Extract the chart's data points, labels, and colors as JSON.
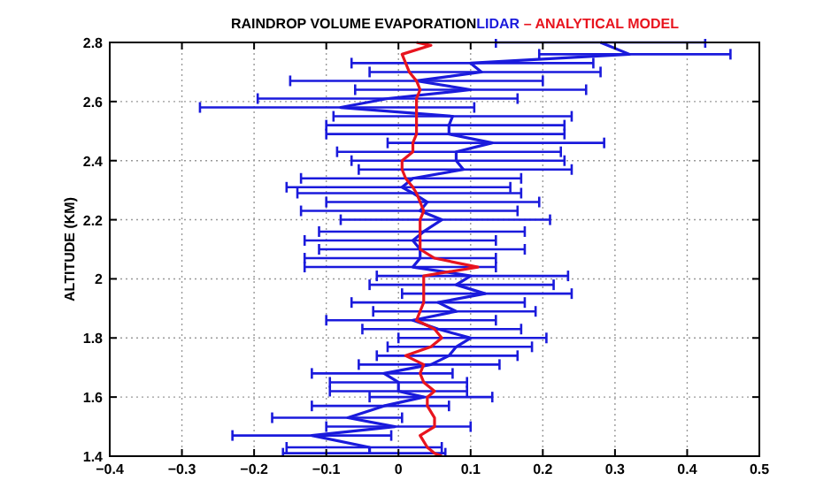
{
  "chart_data": {
    "type": "line",
    "orientation": "horizontal",
    "title": "RAINDROP VOLUME EVAPORATION",
    "ylabel": "ALTITUDE (KM)",
    "legend": "top",
    "grid": true,
    "line_style": "solid",
    "marker": "none",
    "xlim": [
      -0.4,
      0.5
    ],
    "xticks": [
      -0.4,
      -0.3,
      -0.2,
      -0.1,
      0,
      0.1,
      0.2,
      0.3,
      0.4,
      0.5
    ],
    "ylim": [
      1.4,
      2.8
    ],
    "yticks": [
      1.4,
      1.6,
      1.8,
      2,
      2.2,
      2.4,
      2.6,
      2.8
    ],
    "series": [
      {
        "name": "LIDAR",
        "color": "#1a1adc",
        "x": [
          1.41,
          1.43,
          1.47,
          1.5,
          1.53,
          1.57,
          1.6,
          1.62,
          1.65,
          1.68,
          1.71,
          1.74,
          1.77,
          1.8,
          1.83,
          1.86,
          1.89,
          1.92,
          1.95,
          1.98,
          2.01,
          2.04,
          2.07,
          2.1,
          2.13,
          2.16,
          2.2,
          2.23,
          2.26,
          2.29,
          2.31,
          2.34,
          2.37,
          2.4,
          2.43,
          2.46,
          2.49,
          2.52,
          2.55,
          2.58,
          2.61,
          2.64,
          2.67,
          2.7,
          2.73,
          2.76,
          2.8
        ],
        "values": [
          -0.04,
          -0.04,
          -0.12,
          -0.005,
          -0.07,
          -0.02,
          0.035,
          0,
          0,
          -0.02,
          0.045,
          0.07,
          0.08,
          0.1,
          0.055,
          0.02,
          0.08,
          0.055,
          0.12,
          0.08,
          0.1,
          0.02,
          0.03,
          0.03,
          0.02,
          0.035,
          0.06,
          0.03,
          0.04,
          0.02,
          0.005,
          0.02,
          0.09,
          0.08,
          0.08,
          0.13,
          0.07,
          0.07,
          0.075,
          -0.08,
          -0.015,
          0.1,
          0.025,
          0.115,
          0.1,
          0.32,
          0.28
        ],
        "errors": [
          [
            -0.16,
            0.065
          ],
          [
            -0.155,
            0.06
          ],
          [
            -0.23,
            -0.01
          ],
          [
            -0.1,
            0.1
          ],
          [
            -0.175,
            0.005
          ],
          [
            -0.12,
            0.07
          ],
          [
            -0.04,
            0.13
          ],
          [
            -0.095,
            0.095
          ],
          [
            -0.095,
            0.095
          ],
          [
            -0.12,
            0.075
          ],
          [
            -0.055,
            0.14
          ],
          [
            -0.03,
            0.165
          ],
          [
            -0.015,
            0.185
          ],
          [
            0,
            0.205
          ],
          [
            -0.05,
            0.17
          ],
          [
            -0.1,
            0.135
          ],
          [
            -0.035,
            0.19
          ],
          [
            -0.065,
            0.175
          ],
          [
            0.005,
            0.24
          ],
          [
            -0.04,
            0.215
          ],
          [
            -0.03,
            0.235
          ],
          [
            -0.13,
            0.135
          ],
          [
            -0.13,
            0.135
          ],
          [
            -0.11,
            0.175
          ],
          [
            -0.13,
            0.135
          ],
          [
            -0.11,
            0.175
          ],
          [
            -0.08,
            0.21
          ],
          [
            -0.135,
            0.165
          ],
          [
            -0.1,
            0.195
          ],
          [
            -0.14,
            0.17
          ],
          [
            -0.155,
            0.155
          ],
          [
            -0.135,
            0.17
          ],
          [
            -0.055,
            0.24
          ],
          [
            -0.065,
            0.23
          ],
          [
            -0.085,
            0.225
          ],
          [
            -0.015,
            0.285
          ],
          [
            -0.1,
            0.23
          ],
          [
            -0.1,
            0.23
          ],
          [
            -0.09,
            0.24
          ],
          [
            -0.275,
            0.105
          ],
          [
            -0.195,
            0.165
          ],
          [
            -0.06,
            0.26
          ],
          [
            -0.15,
            0.2
          ],
          [
            -0.04,
            0.28
          ],
          [
            -0.065,
            0.27
          ],
          [
            0.195,
            0.46
          ],
          [
            0.135,
            0.425
          ]
        ]
      },
      {
        "name": "– ANALYTICAL MODEL",
        "color": "#e8141e",
        "x": [
          1.4,
          1.41,
          1.43,
          1.47,
          1.5,
          1.53,
          1.57,
          1.6,
          1.62,
          1.65,
          1.68,
          1.71,
          1.74,
          1.77,
          1.8,
          1.83,
          1.86,
          1.89,
          1.92,
          1.95,
          1.98,
          2.01,
          2.04,
          2.07,
          2.1,
          2.13,
          2.16,
          2.2,
          2.23,
          2.26,
          2.29,
          2.31,
          2.34,
          2.37,
          2.4,
          2.43,
          2.46,
          2.49,
          2.52,
          2.55,
          2.58,
          2.61,
          2.64,
          2.67,
          2.7,
          2.73,
          2.76,
          2.79,
          2.8
        ],
        "values": [
          0.06,
          0.05,
          0.04,
          0.03,
          0.05,
          0.05,
          0.04,
          0.04,
          0.05,
          0.035,
          0.03,
          0.035,
          0.01,
          0.045,
          0.06,
          0.05,
          0.025,
          0.03,
          0.035,
          0.035,
          0.035,
          0.035,
          0.11,
          0.05,
          0.03,
          0.03,
          0.03,
          0.03,
          0.035,
          0.03,
          0.025,
          0.02,
          0.01,
          0.005,
          0.005,
          0.02,
          0.02,
          0.025,
          0.025,
          0.025,
          0.025,
          0.025,
          0.03,
          0.025,
          0.015,
          0.01,
          0.005,
          0.045,
          0.025
        ]
      }
    ]
  }
}
